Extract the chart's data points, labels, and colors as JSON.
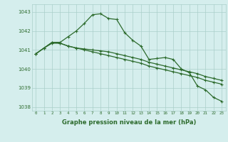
{
  "x": [
    0,
    1,
    2,
    3,
    4,
    5,
    6,
    7,
    8,
    9,
    10,
    11,
    12,
    13,
    14,
    15,
    16,
    17,
    18,
    19,
    20,
    21,
    22,
    23
  ],
  "line1": [
    1040.8,
    1041.1,
    1041.4,
    1041.4,
    1041.7,
    1042.0,
    1042.4,
    1042.85,
    1042.9,
    1042.65,
    1042.6,
    1041.9,
    1041.5,
    1041.2,
    1040.5,
    1040.55,
    1040.6,
    1040.5,
    1040.0,
    1039.8,
    1039.1,
    1038.9,
    1038.5,
    1038.3
  ],
  "line2": [
    1040.8,
    1041.1,
    1041.4,
    1041.35,
    1041.2,
    1041.1,
    1041.05,
    1041.0,
    1040.95,
    1040.9,
    1040.8,
    1040.7,
    1040.6,
    1040.5,
    1040.35,
    1040.25,
    1040.15,
    1040.05,
    1039.95,
    1039.85,
    1039.75,
    1039.6,
    1039.5,
    1039.4
  ],
  "line3": [
    1040.8,
    1041.1,
    1041.35,
    1041.35,
    1041.2,
    1041.1,
    1041.0,
    1040.9,
    1040.8,
    1040.7,
    1040.6,
    1040.5,
    1040.4,
    1040.3,
    1040.15,
    1040.05,
    1039.95,
    1039.85,
    1039.75,
    1039.65,
    1039.55,
    1039.4,
    1039.3,
    1039.2
  ],
  "ylim": [
    1037.8,
    1043.4
  ],
  "yticks": [
    1038,
    1039,
    1040,
    1041,
    1042,
    1043
  ],
  "xticks": [
    0,
    1,
    2,
    3,
    4,
    5,
    6,
    7,
    8,
    9,
    10,
    11,
    12,
    13,
    14,
    15,
    16,
    17,
    18,
    19,
    20,
    21,
    22,
    23
  ],
  "xlabel": "Graphe pression niveau de la mer (hPa)",
  "line_color": "#2d6b2d",
  "bg_color": "#d5eeed",
  "grid_color": "#aacfca",
  "marker": "+",
  "marker_size": 3,
  "linewidth": 0.9
}
